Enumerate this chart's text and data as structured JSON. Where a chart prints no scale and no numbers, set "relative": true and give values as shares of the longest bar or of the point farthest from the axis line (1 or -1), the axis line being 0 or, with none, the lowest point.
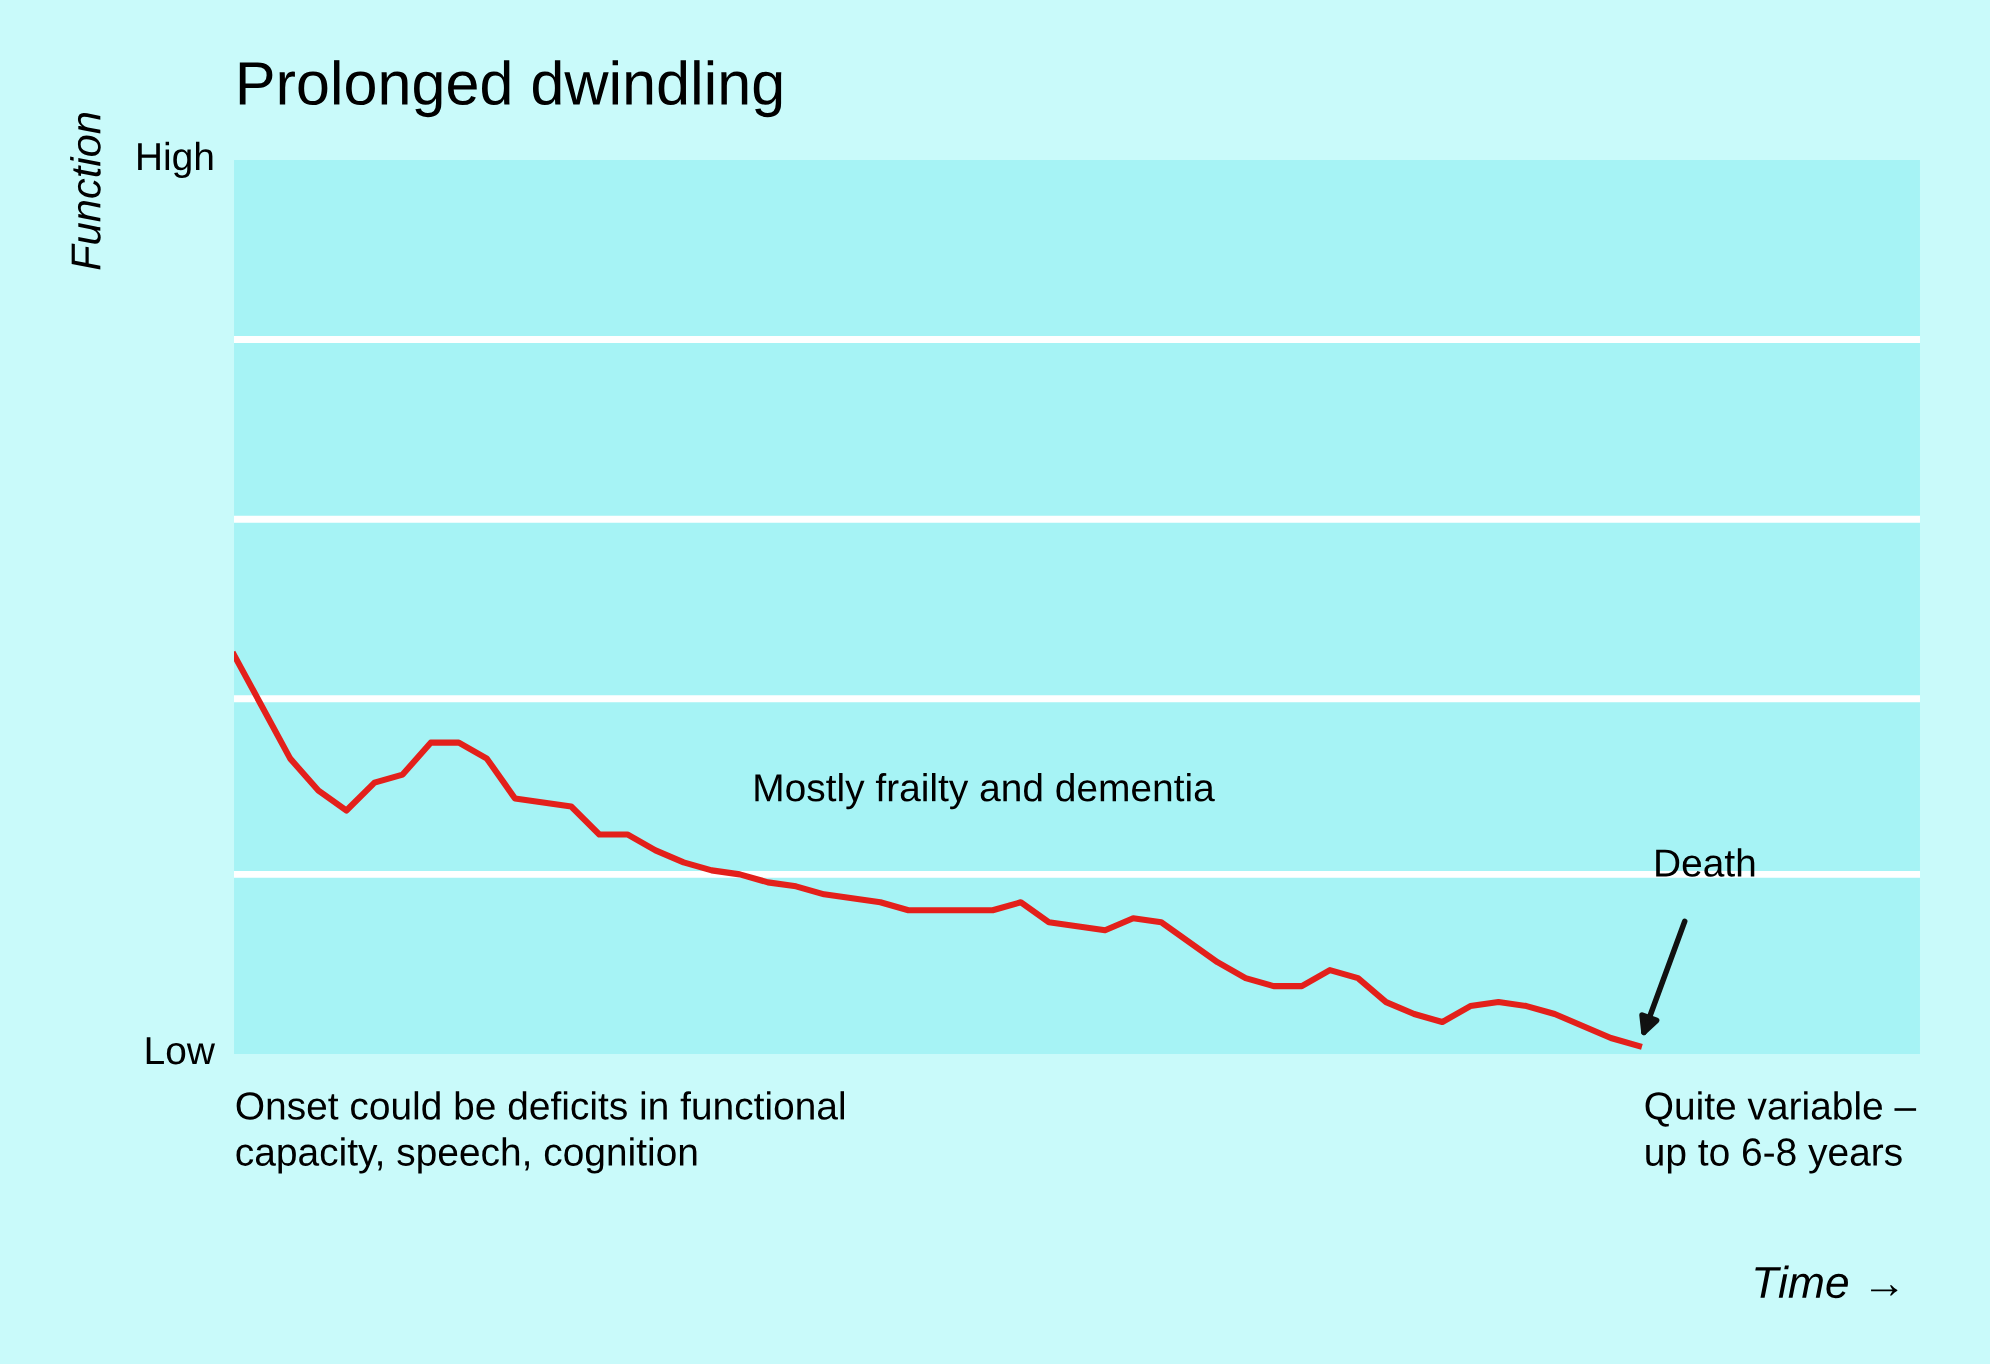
{
  "chart_data": {
    "type": "line",
    "title": "Prolonged dwindling",
    "xlabel": "Time →",
    "relative": true,
    "categories": [
      null,
      null,
      null,
      null,
      null,
      null,
      null,
      null,
      null,
      null,
      null,
      null,
      null,
      null,
      null,
      null,
      null,
      null,
      null,
      null,
      null,
      null,
      null,
      null,
      null,
      null,
      null,
      null,
      null,
      null,
      null,
      null,
      null,
      null,
      null,
      null,
      null,
      null,
      null,
      null,
      null,
      null,
      null,
      null,
      null,
      null,
      null,
      null,
      null,
      null,
      null,
      null,
      null,
      null,
      null,
      null,
      null,
      null,
      null,
      null,
      null
    ],
    "series": [
      {
        "color": "#e3201b",
        "values": [
          1,
          0.87,
          0.74,
          0.66,
          0.61,
          0.68,
          0.7,
          0.78,
          0.78,
          0.74,
          0.64,
          0.63,
          0.62,
          0.55,
          0.55,
          0.51,
          0.48,
          0.46,
          0.45,
          0.43,
          0.42,
          0.4,
          0.39,
          0.38,
          0.36,
          0.36,
          0.36,
          0.36,
          0.38,
          0.33,
          0.32,
          0.31,
          0.34,
          0.33,
          0.28,
          0.23,
          0.19,
          0.17,
          0.17,
          0.21,
          0.19,
          0.13,
          0.1,
          0.08,
          0.12,
          0.13,
          0.12,
          0.1,
          0.07,
          0.04,
          0.02,
          null,
          null,
          null,
          null,
          null,
          null,
          null,
          null,
          null,
          null
        ]
      }
    ],
    "ref_lines": [
      {
        "axis": "y",
        "value": 0.45,
        "color": "#ffffff"
      },
      {
        "axis": "y",
        "value": 0.89,
        "color": "#ffffff"
      },
      {
        "axis": "y",
        "value": 1.34,
        "color": "#ffffff"
      },
      {
        "axis": "y",
        "value": 1.79,
        "color": "#ffffff"
      }
    ],
    "marker": "none",
    "line_style": "solid",
    "annotations": [
      "Mostly frailty and dementia",
      "Onset could be deficits in functional\ncapacity, speech, cognition",
      "Death",
      "Quite variable –\nup to 6-8 years",
      "High",
      "Low",
      "Function"
    ]
  }
}
